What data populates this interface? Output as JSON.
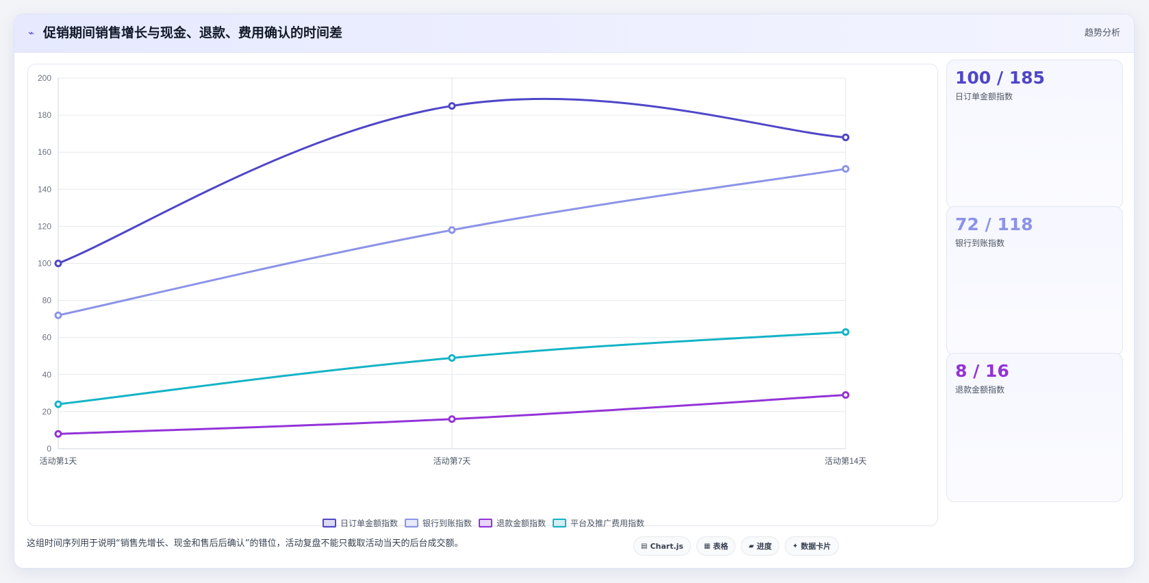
{
  "header": {
    "title_icon": "trend-icon",
    "title_icon_glyph": "⌁",
    "title": "促销期间销售增长与现金、退款、费用确认的时间差",
    "tag": "趋势分析"
  },
  "chart_data": {
    "type": "line",
    "categories": [
      "活动第1天",
      "活动第7天",
      "活动第14天"
    ],
    "ylim": [
      0,
      200
    ],
    "yticks": [
      0,
      20,
      40,
      60,
      80,
      100,
      120,
      140,
      160,
      180,
      200
    ],
    "grid": true,
    "legend_position": "bottom",
    "series": [
      {
        "name": "日订单金额指数",
        "color": "#4f46c8",
        "values": [
          100,
          185,
          168
        ]
      },
      {
        "name": "银行到账指数",
        "color": "#8b93e8",
        "values": [
          72,
          118,
          151
        ]
      },
      {
        "name": "退款金额指数",
        "color": "#9333d8",
        "values": [
          8,
          16,
          29
        ]
      },
      {
        "name": "平台及推广费用指数",
        "color": "#14b3c6",
        "values": [
          24,
          49,
          63
        ]
      }
    ]
  },
  "kpis": [
    {
      "value": "100 / 185",
      "label": "日订单金额指数",
      "color": "#4f46c8"
    },
    {
      "value": "72 / 118",
      "label": "银行到账指数",
      "color": "#8b93e8"
    },
    {
      "value": "8 / 16",
      "label": "退款金额指数",
      "color": "#9333d8"
    }
  ],
  "footer": {
    "note": "这组时间序列用于说明“销售先增长、现金和售后后确认”的错位，活动复盘不能只截取活动当天的后台成交额。",
    "badges": [
      {
        "icon": "chart-icon",
        "glyph": "▤",
        "label": "Chart.js"
      },
      {
        "icon": "table-icon",
        "glyph": "▦",
        "label": "表格"
      },
      {
        "icon": "progress-icon",
        "glyph": "▰",
        "label": "进度"
      },
      {
        "icon": "card-icon",
        "glyph": "✦",
        "label": "数据卡片"
      }
    ]
  }
}
